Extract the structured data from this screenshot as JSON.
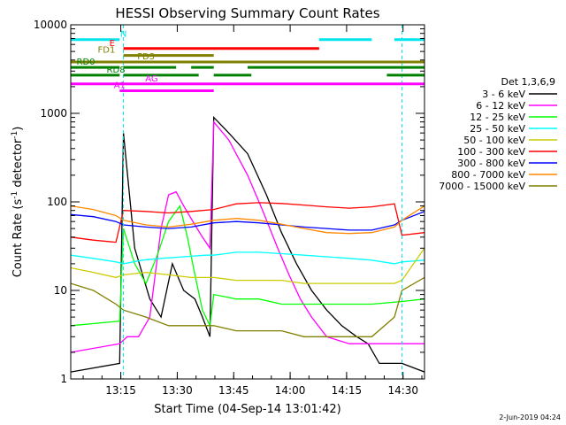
{
  "chart_data": {
    "type": "line",
    "title": "HESSI Observing Summary Count Rates",
    "xlabel": "Start Time (04-Sep-14 13:01:42)",
    "ylabel_main": "Count Rate (s",
    "ylabel_sup1": "-1",
    "ylabel_mid": " detector",
    "ylabel_sup2": "-1",
    "ylabel_end": ")",
    "y_scale": "log",
    "ylim": [
      1,
      10000
    ],
    "xlim_minutes": [
      0,
      94
    ],
    "x_ticks": [
      {
        "minute": 13.3,
        "label": "13:15"
      },
      {
        "minute": 28.3,
        "label": "13:30"
      },
      {
        "minute": 43.3,
        "label": "13:45"
      },
      {
        "minute": 58.3,
        "label": "14:00"
      },
      {
        "minute": 73.3,
        "label": "14:15"
      },
      {
        "minute": 88.3,
        "label": "14:30"
      }
    ],
    "y_ticks": [
      {
        "value": 1,
        "label": "1"
      },
      {
        "value": 10,
        "label": "10"
      },
      {
        "value": 100,
        "label": "100"
      },
      {
        "value": 1000,
        "label": "1000"
      },
      {
        "value": 10000,
        "label": "10000"
      }
    ],
    "legend_title": "Det 1,3,6,9",
    "legend_position": "right",
    "footer_date": "2-Jun-2019 04:24",
    "series": [
      {
        "name": "3 - 6 keV",
        "color": "#000000",
        "points": [
          [
            0,
            1.2
          ],
          [
            13,
            1.5
          ],
          [
            14,
            600
          ],
          [
            17,
            30
          ],
          [
            21,
            8
          ],
          [
            24,
            5
          ],
          [
            27,
            20
          ],
          [
            30,
            10
          ],
          [
            33,
            8
          ],
          [
            35,
            5
          ],
          [
            37,
            3
          ],
          [
            38,
            900
          ],
          [
            42,
            600
          ],
          [
            47,
            350
          ],
          [
            52,
            120
          ],
          [
            56,
            45
          ],
          [
            60,
            20
          ],
          [
            64,
            10
          ],
          [
            68,
            6
          ],
          [
            72,
            4
          ],
          [
            76,
            3
          ],
          [
            79,
            2.5
          ],
          [
            82,
            1.5
          ],
          [
            88,
            1.5
          ],
          [
            94,
            1.2
          ]
        ]
      },
      {
        "name": "6 - 12 keV",
        "color": "#ff00ff",
        "points": [
          [
            0,
            2
          ],
          [
            13,
            2.5
          ],
          [
            15,
            3
          ],
          [
            18,
            3
          ],
          [
            21,
            5
          ],
          [
            24,
            50
          ],
          [
            26,
            120
          ],
          [
            28,
            130
          ],
          [
            30,
            90
          ],
          [
            33,
            55
          ],
          [
            35,
            40
          ],
          [
            37,
            30
          ],
          [
            38,
            800
          ],
          [
            42,
            500
          ],
          [
            47,
            200
          ],
          [
            51,
            80
          ],
          [
            55,
            30
          ],
          [
            58,
            15
          ],
          [
            61,
            8
          ],
          [
            64,
            5
          ],
          [
            68,
            3
          ],
          [
            74,
            2.5
          ],
          [
            88,
            2.5
          ],
          [
            94,
            2.5
          ]
        ]
      },
      {
        "name": "12 - 25 keV",
        "color": "#00ff00",
        "points": [
          [
            0,
            4
          ],
          [
            13,
            4.5
          ],
          [
            14,
            50
          ],
          [
            17,
            20
          ],
          [
            20,
            12
          ],
          [
            23,
            25
          ],
          [
            26,
            60
          ],
          [
            29,
            90
          ],
          [
            31,
            40
          ],
          [
            33,
            15
          ],
          [
            35,
            6
          ],
          [
            37,
            4
          ],
          [
            38,
            9
          ],
          [
            44,
            8
          ],
          [
            50,
            8
          ],
          [
            56,
            7
          ],
          [
            62,
            7
          ],
          [
            68,
            7
          ],
          [
            74,
            7
          ],
          [
            80,
            7
          ],
          [
            88,
            7.5
          ],
          [
            94,
            8
          ]
        ]
      },
      {
        "name": "25 - 50 keV",
        "color": "#00ffff",
        "points": [
          [
            0,
            25
          ],
          [
            6,
            23
          ],
          [
            12,
            21
          ],
          [
            14,
            20
          ],
          [
            19,
            22
          ],
          [
            24,
            23
          ],
          [
            30,
            24
          ],
          [
            36,
            25
          ],
          [
            38,
            25
          ],
          [
            44,
            27
          ],
          [
            50,
            27
          ],
          [
            56,
            26
          ],
          [
            62,
            25
          ],
          [
            68,
            24
          ],
          [
            74,
            23
          ],
          [
            80,
            22
          ],
          [
            86,
            20
          ],
          [
            88,
            21
          ],
          [
            94,
            22
          ]
        ]
      },
      {
        "name": "50 - 100 keV",
        "color": "#cccc00",
        "points": [
          [
            0,
            18
          ],
          [
            6,
            16
          ],
          [
            12,
            14
          ],
          [
            14,
            15
          ],
          [
            20,
            16
          ],
          [
            26,
            15
          ],
          [
            32,
            14
          ],
          [
            38,
            14
          ],
          [
            44,
            13
          ],
          [
            50,
            13
          ],
          [
            56,
            13
          ],
          [
            62,
            12
          ],
          [
            68,
            12
          ],
          [
            74,
            12
          ],
          [
            80,
            12
          ],
          [
            86,
            12
          ],
          [
            88,
            13
          ],
          [
            94,
            30
          ]
        ]
      },
      {
        "name": "100 - 300 keV",
        "color": "#ff0000",
        "points": [
          [
            0,
            40
          ],
          [
            6,
            37
          ],
          [
            12,
            35
          ],
          [
            14,
            80
          ],
          [
            20,
            78
          ],
          [
            26,
            75
          ],
          [
            32,
            78
          ],
          [
            38,
            82
          ],
          [
            44,
            95
          ],
          [
            50,
            98
          ],
          [
            56,
            96
          ],
          [
            62,
            92
          ],
          [
            68,
            88
          ],
          [
            74,
            85
          ],
          [
            80,
            88
          ],
          [
            86,
            95
          ],
          [
            88,
            42
          ],
          [
            94,
            45
          ]
        ]
      },
      {
        "name": "300 - 800 keV",
        "color": "#0000ff",
        "points": [
          [
            0,
            72
          ],
          [
            6,
            68
          ],
          [
            12,
            60
          ],
          [
            14,
            55
          ],
          [
            20,
            52
          ],
          [
            26,
            50
          ],
          [
            32,
            52
          ],
          [
            38,
            58
          ],
          [
            44,
            60
          ],
          [
            50,
            58
          ],
          [
            56,
            55
          ],
          [
            62,
            52
          ],
          [
            68,
            50
          ],
          [
            74,
            48
          ],
          [
            80,
            48
          ],
          [
            86,
            55
          ],
          [
            88,
            62
          ],
          [
            94,
            78
          ]
        ]
      },
      {
        "name": "800 - 7000 keV",
        "color": "#ff8800",
        "points": [
          [
            0,
            90
          ],
          [
            6,
            82
          ],
          [
            12,
            70
          ],
          [
            14,
            62
          ],
          [
            20,
            55
          ],
          [
            26,
            52
          ],
          [
            32,
            56
          ],
          [
            38,
            62
          ],
          [
            44,
            65
          ],
          [
            50,
            62
          ],
          [
            56,
            56
          ],
          [
            62,
            50
          ],
          [
            68,
            45
          ],
          [
            74,
            44
          ],
          [
            80,
            45
          ],
          [
            86,
            52
          ],
          [
            88,
            62
          ],
          [
            94,
            90
          ]
        ]
      },
      {
        "name": "7000 - 15000 keV",
        "color": "#808000",
        "points": [
          [
            0,
            12
          ],
          [
            6,
            10
          ],
          [
            12,
            7
          ],
          [
            14,
            6
          ],
          [
            20,
            5
          ],
          [
            26,
            4
          ],
          [
            32,
            4
          ],
          [
            38,
            4
          ],
          [
            44,
            3.5
          ],
          [
            50,
            3.5
          ],
          [
            56,
            3.5
          ],
          [
            62,
            3
          ],
          [
            68,
            3
          ],
          [
            74,
            3
          ],
          [
            80,
            3
          ],
          [
            86,
            5
          ],
          [
            88,
            10
          ],
          [
            94,
            14
          ]
        ]
      }
    ],
    "flag_bars": [
      {
        "label": "N",
        "color": "#00e5ee",
        "value": 6800,
        "label_minute": 14,
        "segments": [
          [
            0,
            13
          ],
          [
            66,
            80
          ],
          [
            86,
            94
          ]
        ]
      },
      {
        "label": "E",
        "color": "#ff0000",
        "value": 5400,
        "label_minute": 11,
        "segments": [
          [
            14,
            66
          ]
        ]
      },
      {
        "label": "FD1",
        "color": "#808000",
        "value": 4500,
        "label_minute": 9.5,
        "segments": [
          [
            14,
            38
          ]
        ]
      },
      {
        "label": "FD3",
        "color": "#808000",
        "value": 3800,
        "label_minute": 20,
        "segments": [
          [
            0,
            94
          ]
        ]
      },
      {
        "label": "RD0",
        "color": "#008000",
        "value": 3300,
        "label_minute": 4,
        "segments": [
          [
            0,
            13
          ],
          [
            14,
            28
          ],
          [
            32,
            38
          ],
          [
            47,
            94
          ]
        ]
      },
      {
        "label": "RD8",
        "color": "#008000",
        "value": 2700,
        "label_minute": 12,
        "segments": [
          [
            0,
            13
          ],
          [
            14,
            34
          ],
          [
            38,
            48
          ],
          [
            84,
            94
          ]
        ]
      },
      {
        "label": "AG",
        "color": "#ff00ff",
        "value": 2150,
        "label_minute": 21.5,
        "segments": [
          [
            0,
            94
          ]
        ]
      },
      {
        "label": "A1",
        "color": "#ff00ff",
        "value": 1800,
        "label_minute": 13,
        "segments": [
          [
            13,
            38
          ]
        ]
      }
    ],
    "attenuator_markers_minutes": [
      14,
      88
    ]
  }
}
